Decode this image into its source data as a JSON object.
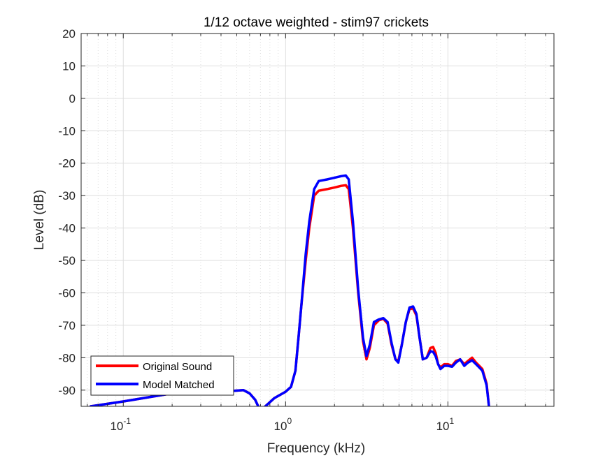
{
  "chart_data": {
    "type": "line",
    "title": "1/12 octave weighted - stim97 crickets",
    "xlabel": "Frequency (kHz)",
    "ylabel": "Level (dB)",
    "xscale": "log",
    "xlim": [
      0.055,
      45
    ],
    "ylim": [
      -95,
      20
    ],
    "yticks": [
      20,
      10,
      0,
      -10,
      -20,
      -30,
      -40,
      -50,
      -60,
      -70,
      -80,
      -90
    ],
    "xticks": [
      {
        "value": 0.1,
        "base": "10",
        "exp": "-1"
      },
      {
        "value": 1,
        "base": "10",
        "exp": "0"
      },
      {
        "value": 10,
        "base": "10",
        "exp": "1"
      }
    ],
    "grid": true,
    "legend_position": "bottom-left",
    "series": [
      {
        "name": "Original Sound",
        "color": "#ff0000",
        "x": [
          0.063,
          0.1,
          0.2,
          0.4,
          0.55,
          0.6,
          0.65,
          0.7,
          0.75,
          0.85,
          1.0,
          1.08,
          1.15,
          1.2,
          1.25,
          1.33,
          1.4,
          1.5,
          1.6,
          1.8,
          2.0,
          2.2,
          2.35,
          2.45,
          2.6,
          2.8,
          3.0,
          3.15,
          3.3,
          3.5,
          3.75,
          4.0,
          4.25,
          4.5,
          4.75,
          4.95,
          5.2,
          5.5,
          5.8,
          6.1,
          6.4,
          6.7,
          7.0,
          7.4,
          7.8,
          8.1,
          8.4,
          8.7,
          9.0,
          9.5,
          10.0,
          10.6,
          11.2,
          11.9,
          12.6,
          13.3,
          14.1,
          14.9,
          15.6,
          16.3,
          17.3,
          17.9
        ],
        "values": [
          -95,
          -93.5,
          -91,
          -90.5,
          -90,
          -91,
          -93,
          -96.5,
          -95,
          -92.5,
          -90.5,
          -89,
          -84,
          -74,
          -64,
          -50,
          -40,
          -30,
          -28.5,
          -28,
          -27.5,
          -27,
          -26.8,
          -28,
          -40,
          -60,
          -75,
          -80.5,
          -77,
          -70,
          -68.5,
          -68,
          -69.5,
          -76,
          -80.5,
          -81,
          -76,
          -69,
          -65,
          -64.8,
          -67,
          -74,
          -80.5,
          -80,
          -77,
          -76.7,
          -78.5,
          -82,
          -83,
          -82,
          -82,
          -82.5,
          -81,
          -80.5,
          -82,
          -81,
          -80,
          -81.5,
          -82.5,
          -83.5,
          -88,
          -95
        ]
      },
      {
        "name": "Model Matched",
        "color": "#0000ff",
        "x": [
          0.063,
          0.1,
          0.2,
          0.4,
          0.55,
          0.6,
          0.65,
          0.7,
          0.75,
          0.85,
          1.0,
          1.08,
          1.15,
          1.2,
          1.25,
          1.33,
          1.4,
          1.5,
          1.6,
          1.8,
          2.0,
          2.2,
          2.35,
          2.45,
          2.6,
          2.8,
          3.0,
          3.15,
          3.3,
          3.5,
          3.75,
          4.0,
          4.25,
          4.5,
          4.75,
          4.95,
          5.2,
          5.5,
          5.8,
          6.1,
          6.4,
          6.7,
          7.0,
          7.4,
          7.8,
          8.1,
          8.4,
          8.7,
          9.0,
          9.5,
          10.0,
          10.6,
          11.2,
          11.9,
          12.6,
          13.3,
          14.1,
          14.9,
          15.6,
          16.3,
          17.3,
          17.9
        ],
        "values": [
          -95,
          -93.5,
          -91,
          -90.5,
          -90,
          -91,
          -93,
          -96.5,
          -95,
          -92.5,
          -90.5,
          -89,
          -84,
          -74,
          -64,
          -48,
          -38,
          -28,
          -25.5,
          -25,
          -24.5,
          -24,
          -23.8,
          -25,
          -38,
          -59,
          -74,
          -79.5,
          -76,
          -69,
          -68.2,
          -67.8,
          -69,
          -75.5,
          -80.5,
          -81.5,
          -76,
          -69,
          -64.5,
          -64.2,
          -66.5,
          -74,
          -80.5,
          -80,
          -78,
          -78.2,
          -79.5,
          -82,
          -83.5,
          -82.5,
          -82.5,
          -82.8,
          -81.5,
          -80.5,
          -82.5,
          -81.5,
          -80.8,
          -82,
          -83,
          -84,
          -88.5,
          -95
        ]
      }
    ]
  }
}
